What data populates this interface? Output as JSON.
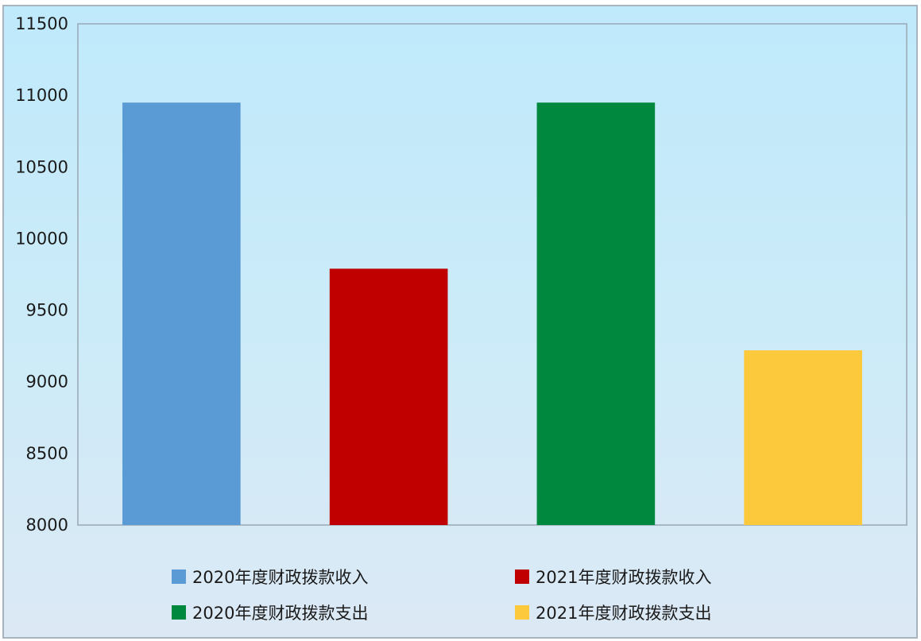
{
  "chart_data": {
    "type": "bar",
    "categories": [
      "2020年度财政拨款收入",
      "2021年度财政拨款收入",
      "2020年度财政拨款支出",
      "2021年度财政拨款支出"
    ],
    "values": [
      10950,
      9790,
      10950,
      9220
    ],
    "colors": [
      "#5b9bd5",
      "#c00000",
      "#00893e",
      "#fdc93c"
    ],
    "ylim": [
      8000,
      11500
    ],
    "yticks": [
      8000,
      8500,
      9000,
      9500,
      10000,
      10500,
      11000,
      11500
    ],
    "grid": false,
    "legend": {
      "position": "bottom",
      "items": [
        {
          "label": "2020年度财政拨款收入",
          "color": "#5b9bd5"
        },
        {
          "label": "2021年度财政拨款收入",
          "color": "#c00000"
        },
        {
          "label": "2020年度财政拨款支出",
          "color": "#00893e"
        },
        {
          "label": "2021年度财政拨款支出",
          "color": "#fdc93c"
        }
      ]
    }
  }
}
